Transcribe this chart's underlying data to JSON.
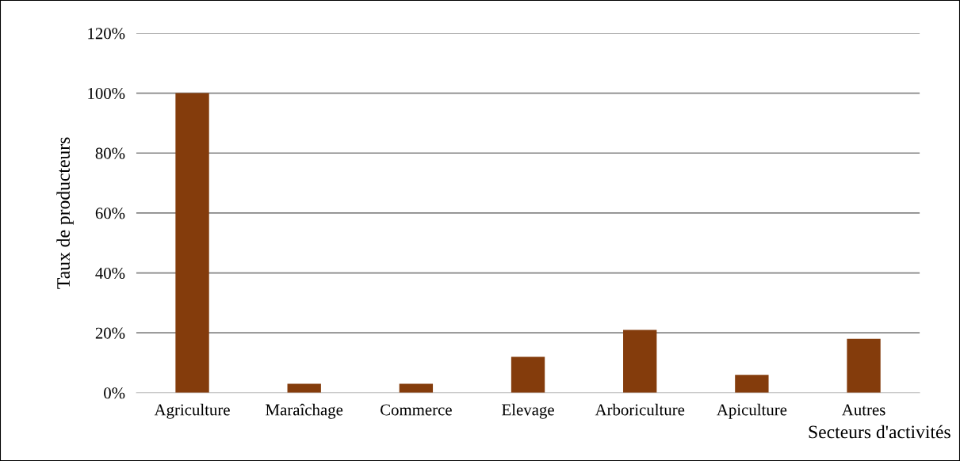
{
  "chart_data": {
    "type": "bar",
    "xlabel": "Secteurs d'activités",
    "ylabel": "Taux de producteurs",
    "categories": [
      "Agriculture",
      "Maraîchage",
      "Commerce",
      "Elevage",
      "Arboriculture",
      "Apiculture",
      "Autres"
    ],
    "values": [
      100,
      3,
      3,
      12,
      21,
      6,
      18
    ],
    "color": "#843c0c",
    "ylim": [
      0,
      120
    ],
    "yticks": [
      {
        "value": 0,
        "label": "0%"
      },
      {
        "value": 20,
        "label": "20%"
      },
      {
        "value": 40,
        "label": "40%"
      },
      {
        "value": 60,
        "label": "60%"
      },
      {
        "value": 80,
        "label": "80%"
      },
      {
        "value": 100,
        "label": "100%"
      },
      {
        "value": 120,
        "label": "120%"
      }
    ],
    "grid": "y",
    "legend": false
  }
}
